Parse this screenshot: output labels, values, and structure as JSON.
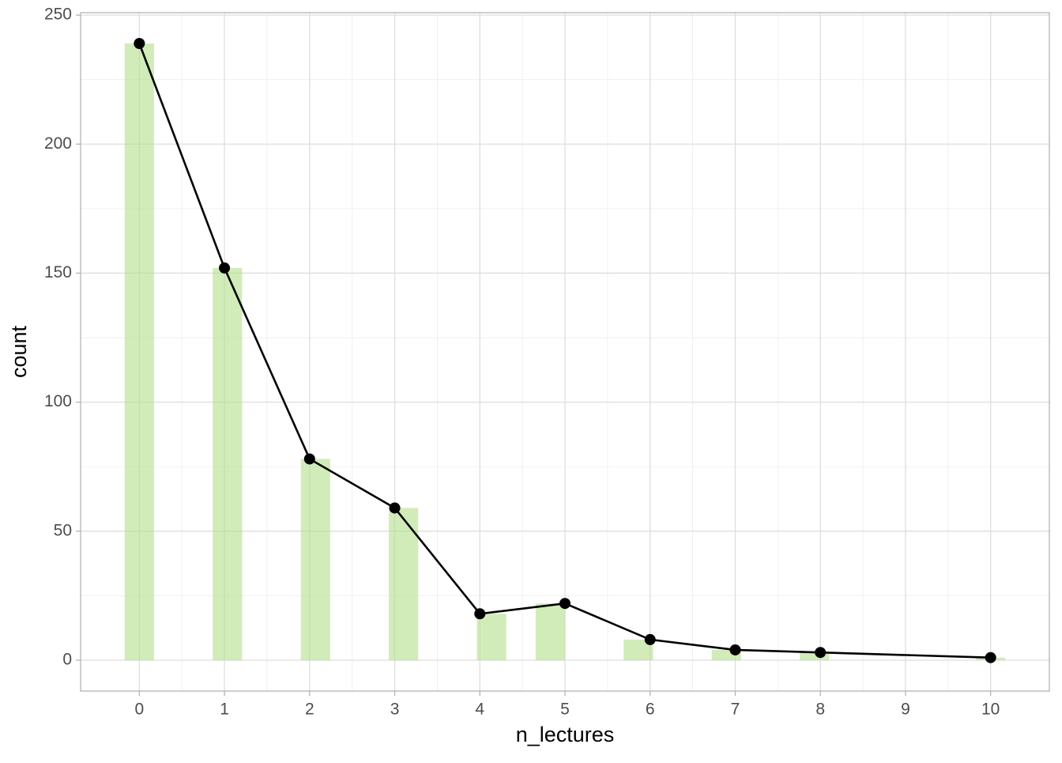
{
  "chart_data": {
    "type": "histogram",
    "x_label": "n_lectures",
    "y_label": "count",
    "bins": [
      -0.1724,
      0.1724,
      0.5172,
      0.8621,
      1.2069,
      1.5517,
      1.8966,
      2.2414,
      2.5862,
      2.931,
      3.2759,
      3.6207,
      3.9655,
      4.3103,
      4.6552,
      5.0,
      5.3448,
      5.6897,
      6.0345,
      6.3793,
      6.7241,
      7.069,
      7.4138,
      7.7586,
      8.1034,
      8.4483,
      8.7931,
      9.1379,
      9.4828,
      9.8276,
      10.1724
    ],
    "counts": [
      239,
      0,
      0,
      152,
      0,
      0,
      78,
      0,
      0,
      59,
      0,
      0,
      18,
      0,
      22,
      0,
      0,
      8,
      0,
      0,
      4,
      0,
      0,
      3,
      0,
      0,
      0,
      0,
      0,
      1
    ],
    "color": "#b2df8a",
    "overlay": {
      "type": "line",
      "x": [
        0,
        1,
        2,
        3,
        4,
        5,
        6,
        7,
        8,
        10
      ],
      "values": [
        239,
        152,
        78,
        59,
        18,
        22,
        8,
        4,
        3,
        1
      ],
      "color": "#000000"
    },
    "xlim": [
      -0.69,
      10.69
    ],
    "xticks": [
      0,
      1,
      2,
      3,
      4,
      5,
      6,
      7,
      8,
      9,
      10
    ],
    "ylim": [
      -11.95,
      250.95
    ],
    "yticks": [
      0,
      50,
      100,
      150,
      200,
      250
    ],
    "grid": true,
    "minor_grid": true
  }
}
